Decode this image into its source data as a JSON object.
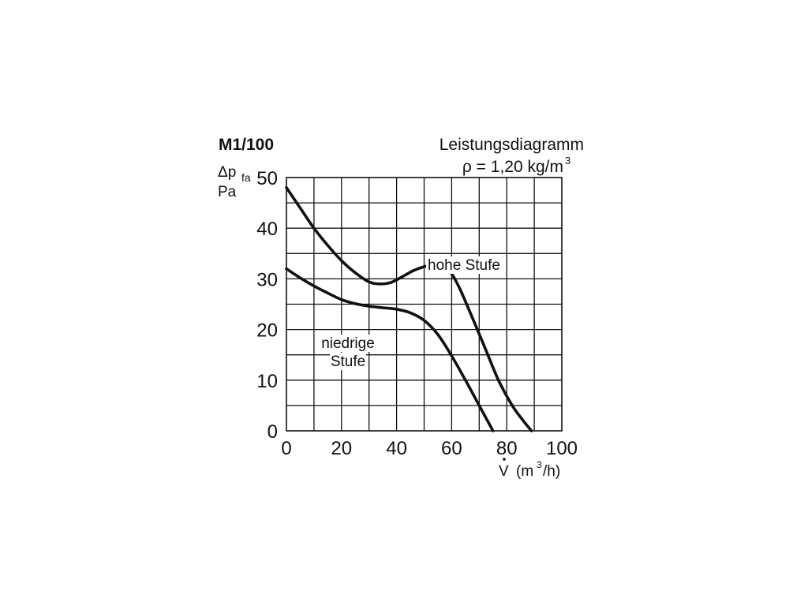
{
  "chart_data": {
    "type": "line",
    "title": "M1/100",
    "subtitle": "Leistungsdiagramm",
    "density_label": "ρ = 1,20 kg/m",
    "density_unit_sup": "3",
    "ylabel_symbol": "Δp",
    "ylabel_sub": "fa",
    "ylabel_unit": "Pa",
    "xlabel_symbol": "V",
    "xlabel_unit_pre": "(m",
    "xlabel_unit_sup": "3",
    "xlabel_unit_post": "/h)",
    "xlim": [
      0,
      100
    ],
    "ylim": [
      0,
      50
    ],
    "x_ticks": [
      "0",
      "20",
      "40",
      "60",
      "80",
      "100"
    ],
    "y_ticks": [
      "0",
      "10",
      "20",
      "30",
      "40",
      "50"
    ],
    "grid": true,
    "grid_x_step": 10,
    "grid_y_step": 5,
    "series": [
      {
        "name": "hohe Stufe",
        "points": [
          [
            0,
            48
          ],
          [
            5,
            44
          ],
          [
            10,
            40
          ],
          [
            15,
            36.6
          ],
          [
            20,
            33.6
          ],
          [
            25,
            31.2
          ],
          [
            30,
            29.4
          ],
          [
            34,
            29
          ],
          [
            38,
            29.3
          ],
          [
            42,
            30.4
          ],
          [
            46,
            31.6
          ],
          [
            50,
            32.4
          ],
          [
            54,
            32.8
          ],
          [
            57,
            32.5
          ],
          [
            60,
            31
          ],
          [
            63,
            28
          ],
          [
            67,
            23
          ],
          [
            72,
            16.5
          ],
          [
            77,
            10
          ],
          [
            82,
            5
          ],
          [
            86,
            2
          ],
          [
            89,
            0
          ]
        ]
      },
      {
        "name": "niedrige Stufe",
        "points": [
          [
            0,
            32
          ],
          [
            5,
            30.2
          ],
          [
            10,
            28.6
          ],
          [
            15,
            27.2
          ],
          [
            20,
            25.9
          ],
          [
            25,
            25.1
          ],
          [
            30,
            24.6
          ],
          [
            35,
            24.3
          ],
          [
            40,
            24
          ],
          [
            45,
            23.3
          ],
          [
            50,
            21.8
          ],
          [
            55,
            19
          ],
          [
            60,
            14.8
          ],
          [
            65,
            10
          ],
          [
            70,
            5
          ],
          [
            73,
            2
          ],
          [
            75,
            0
          ]
        ]
      }
    ]
  }
}
